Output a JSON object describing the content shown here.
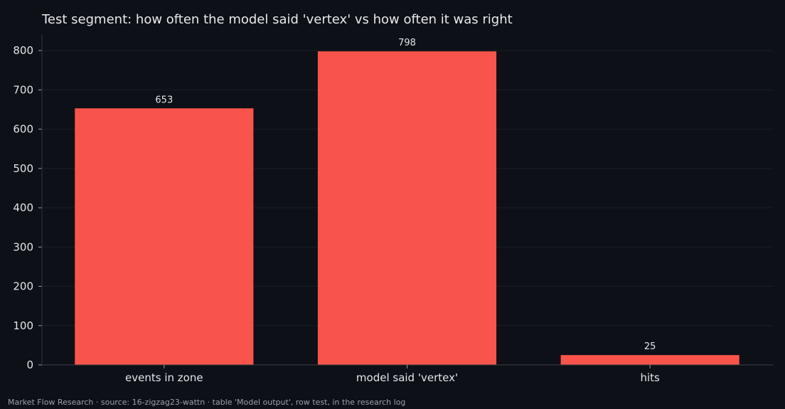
{
  "chart_data": {
    "type": "bar",
    "title": "Test segment: how often the model said 'vertex' vs how often it was right",
    "categories": [
      "events in zone",
      "model said 'vertex'",
      "hits"
    ],
    "values": [
      653,
      798,
      25
    ],
    "value_labels": [
      "653",
      "798",
      "25"
    ],
    "xlabel": "",
    "ylabel": "",
    "ylim": [
      0,
      840
    ],
    "yticks": [
      0,
      100,
      200,
      300,
      400,
      500,
      600,
      700,
      800
    ],
    "grid": true,
    "bar_color": "#f9544b",
    "background_color": "#0d1017"
  },
  "footer": {
    "text": "Market Flow Research · source: 16-zigzag23-wattn · table 'Model output', row test, in the research log"
  }
}
